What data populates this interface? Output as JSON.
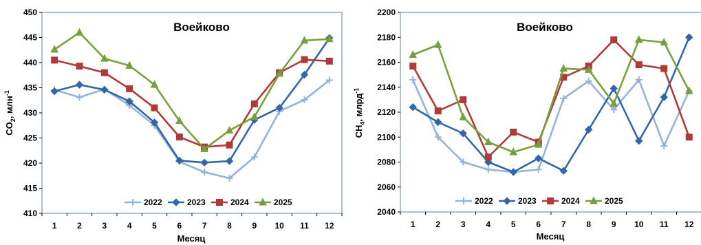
{
  "chart_data": [
    {
      "type": "line",
      "title": "Воейково",
      "xlabel": "Месяц",
      "ylabel": "CO",
      "ylabel_sub": "2",
      "ylabel_unit": ", млн",
      "ylabel_sup": "-1",
      "x": [
        1,
        2,
        3,
        4,
        5,
        6,
        7,
        8,
        9,
        10,
        11,
        12
      ],
      "ylim": [
        410,
        450
      ],
      "yticks": [
        410,
        415,
        420,
        425,
        430,
        435,
        440,
        445,
        450
      ],
      "grid": "none",
      "legend_position": "bottom",
      "series": [
        {
          "name": "2022",
          "color": "#95b3d7",
          "marker": "plus",
          "values": [
            434.6,
            433.1,
            434.7,
            431.5,
            427.5,
            420.3,
            418.2,
            417.0,
            421.2,
            430.3,
            432.6,
            436.5
          ]
        },
        {
          "name": "2023",
          "color": "#3366a8",
          "marker": "diamond",
          "values": [
            434.3,
            435.6,
            434.6,
            432.3,
            428.1,
            420.5,
            420.1,
            420.4,
            428.6,
            431.0,
            437.6,
            444.9
          ]
        },
        {
          "name": "2024",
          "color": "#b03a38",
          "marker": "square",
          "values": [
            440.5,
            439.3,
            438.0,
            434.8,
            431.0,
            425.2,
            423.2,
            423.6,
            431.8,
            438.0,
            440.6,
            440.3
          ]
        },
        {
          "name": "2025",
          "color": "#77a03c",
          "marker": "triangle",
          "values": [
            442.6,
            446.0,
            440.8,
            439.4,
            435.6,
            428.4,
            422.8,
            426.5,
            429.2,
            437.8,
            444.4,
            444.7
          ]
        }
      ]
    },
    {
      "type": "line",
      "title": "Воейково",
      "xlabel": "Месяц",
      "ylabel": "CH",
      "ylabel_sub": "4",
      "ylabel_unit": ",  млрд",
      "ylabel_sup": "-1",
      "x": [
        1,
        2,
        3,
        4,
        5,
        6,
        7,
        8,
        9,
        10,
        11,
        12
      ],
      "ylim": [
        2040,
        2200
      ],
      "yticks": [
        2040,
        2060,
        2080,
        2100,
        2120,
        2140,
        2160,
        2180,
        2200
      ],
      "grid": "none",
      "legend_position": "bottom",
      "series": [
        {
          "name": "2022",
          "color": "#95b3d7",
          "marker": "plus",
          "values": [
            2146,
            2100,
            2080,
            2074,
            2072,
            2074,
            2131,
            2145,
            2122,
            2146,
            2093,
            2137
          ]
        },
        {
          "name": "2023",
          "color": "#3366a8",
          "marker": "diamond",
          "values": [
            2124,
            2112,
            2103,
            2080,
            2072,
            2083,
            2073,
            2106,
            2139,
            2097,
            2132,
            2180
          ]
        },
        {
          "name": "2024",
          "color": "#b03a38",
          "marker": "square",
          "values": [
            2157,
            2121,
            2130,
            2084,
            2104,
            2096,
            2148,
            2157,
            2178,
            2158,
            2155,
            2100
          ]
        },
        {
          "name": "2025",
          "color": "#77a03c",
          "marker": "triangle",
          "values": [
            2166,
            2174,
            2116,
            2096,
            2088,
            2094,
            2155,
            2154,
            2127,
            2178,
            2176,
            2137
          ]
        }
      ]
    }
  ]
}
